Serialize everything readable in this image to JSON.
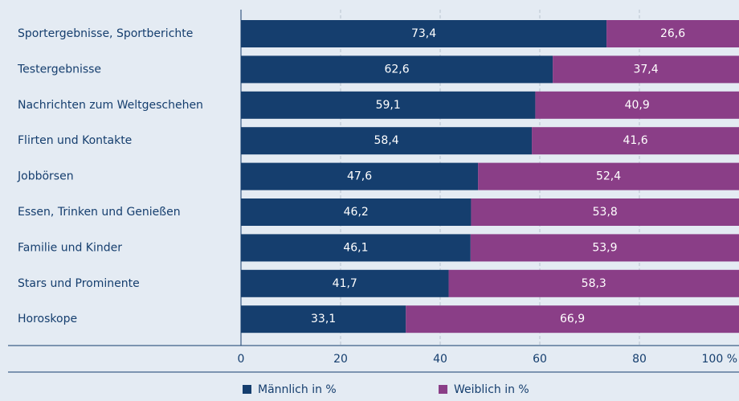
{
  "chart_data": {
    "type": "stacked-barh",
    "categories": [
      "Sportergebnisse, Sportberichte",
      "Testergebnisse",
      "Nachrichten zum Weltgeschehen",
      "Flirten und Kontakte",
      "Jobbörsen",
      "Essen, Trinken und Genießen",
      "Familie und Kinder",
      "Stars und Prominente",
      "Horoskope"
    ],
    "series": [
      {
        "name": "Männlich in %",
        "color": "#153e6e",
        "values": [
          73.4,
          62.6,
          59.1,
          58.4,
          47.6,
          46.2,
          46.1,
          41.7,
          33.1
        ],
        "value_labels": [
          "73,4",
          "62,6",
          "59,1",
          "58,4",
          "47,6",
          "46,2",
          "46,1",
          "41,7",
          "33,1"
        ]
      },
      {
        "name": "Weiblich in %",
        "color": "#8a3e87",
        "values": [
          26.6,
          37.4,
          40.9,
          41.6,
          52.4,
          53.8,
          53.9,
          58.3,
          66.9
        ],
        "value_labels": [
          "26,6",
          "37,4",
          "40,9",
          "41,6",
          "52,4",
          "53,8",
          "53,9",
          "58,3",
          "66,9"
        ]
      }
    ],
    "xlim": [
      0,
      100
    ],
    "xticks": [
      0,
      20,
      40,
      60,
      80,
      {
        "value": 100,
        "label": "100 %"
      }
    ],
    "grid": true,
    "legend": "bottom"
  }
}
